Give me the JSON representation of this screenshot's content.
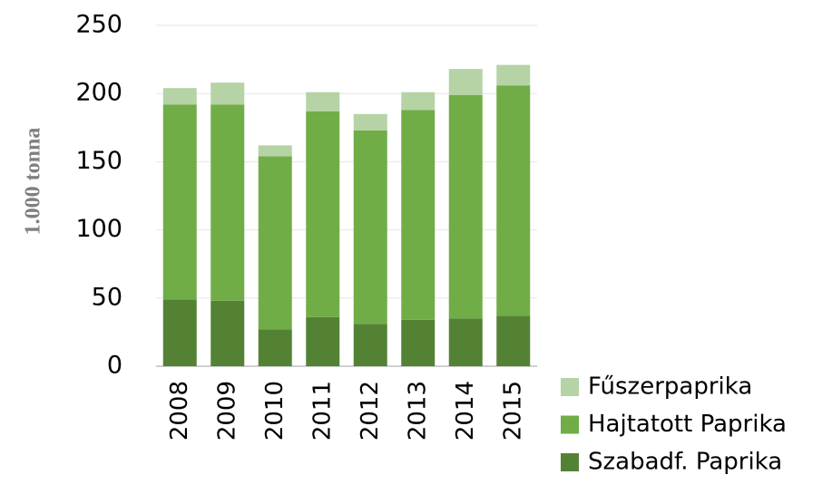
{
  "chart_data": {
    "type": "stacked_bar",
    "y_label": "1.000 tonna",
    "categories": [
      "2008",
      "2009",
      "2010",
      "2011",
      "2012",
      "2013",
      "2014",
      "2015"
    ],
    "series": [
      {
        "name": "Fűszerpaprika",
        "color": "#b5d3a5",
        "values": [
          12,
          16,
          8,
          14,
          12,
          13,
          19,
          15
        ]
      },
      {
        "name": "Hajtatott Paprika",
        "color": "#70ad47",
        "values": [
          143,
          144,
          127,
          151,
          142,
          154,
          164,
          169
        ]
      },
      {
        "name": "Szabadf. Paprika",
        "color": "#548235",
        "values": [
          49,
          48,
          27,
          36,
          31,
          34,
          35,
          37
        ]
      }
    ],
    "ylim": [
      0,
      250
    ],
    "yticks": [
      0,
      50,
      100,
      150,
      200,
      250
    ],
    "grid": true
  }
}
